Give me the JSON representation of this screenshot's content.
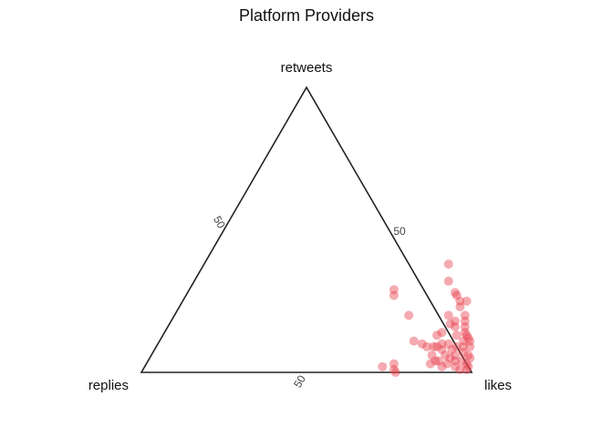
{
  "chart_data": {
    "type": "scatter",
    "subtype": "ternary",
    "title": "Platform Providers",
    "axes": {
      "top": "retweets",
      "left": "replies",
      "right": "likes"
    },
    "tick_labels": [
      "50",
      "50",
      "50"
    ],
    "ternary_range": [
      0,
      100
    ],
    "grid": false,
    "point_color": "#e8434f",
    "point_opacity": 0.45,
    "points": [
      {
        "likes": 62,
        "retweets": 29,
        "replies": 9
      },
      {
        "likes": 63,
        "retweets": 27,
        "replies": 10
      },
      {
        "likes": 71,
        "retweets": 20,
        "replies": 9
      },
      {
        "likes": 77,
        "retweets": 11,
        "replies": 12
      },
      {
        "likes": 80,
        "retweets": 10,
        "replies": 10
      },
      {
        "likes": 82,
        "retweets": 9,
        "replies": 9
      },
      {
        "likes": 84,
        "retweets": 9,
        "replies": 7
      },
      {
        "likes": 85,
        "retweets": 9,
        "replies": 6
      },
      {
        "likes": 87,
        "retweets": 8,
        "replies": 5
      },
      {
        "likes": 86,
        "retweets": 10,
        "replies": 4
      },
      {
        "likes": 83,
        "retweets": 13,
        "replies": 4
      },
      {
        "likes": 85,
        "retweets": 6,
        "replies": 9
      },
      {
        "likes": 88,
        "retweets": 4,
        "replies": 8
      },
      {
        "likes": 86,
        "retweets": 3,
        "replies": 11
      },
      {
        "likes": 74,
        "retweets": 38,
        "replies": -12
      },
      {
        "likes": 77,
        "retweets": 32,
        "replies": -9
      },
      {
        "likes": 81,
        "retweets": 28,
        "replies": -9
      },
      {
        "likes": 85,
        "retweets": 23,
        "replies": -8
      },
      {
        "likes": 82,
        "retweets": 27,
        "replies": -9
      },
      {
        "likes": 84,
        "retweets": 25,
        "replies": -9
      },
      {
        "likes": 86,
        "retweets": 25,
        "replies": -11
      },
      {
        "likes": 85,
        "retweets": 17,
        "replies": -2
      },
      {
        "likes": 86,
        "retweets": 18,
        "replies": -4
      },
      {
        "likes": 84,
        "retweets": 14,
        "replies": 2
      },
      {
        "likes": 87,
        "retweets": 16,
        "replies": -3
      },
      {
        "likes": 83,
        "retweets": 20,
        "replies": -3
      },
      {
        "likes": 88,
        "retweets": 20,
        "replies": -8
      },
      {
        "likes": 89,
        "retweets": 18,
        "replies": -7
      },
      {
        "likes": 90,
        "retweets": 16,
        "replies": -6
      },
      {
        "likes": 91,
        "retweets": 14,
        "replies": -5
      },
      {
        "likes": 92,
        "retweets": 13,
        "replies": -5
      },
      {
        "likes": 93,
        "retweets": 12,
        "replies": -5
      },
      {
        "likes": 94,
        "retweets": 11,
        "replies": -5
      },
      {
        "likes": 92,
        "retweets": 11,
        "replies": -3
      },
      {
        "likes": 91,
        "retweets": 9,
        "replies": 0
      },
      {
        "likes": 93,
        "retweets": 9,
        "replies": -2
      },
      {
        "likes": 95,
        "retweets": 9,
        "replies": -4
      },
      {
        "likes": 94,
        "retweets": 7,
        "replies": -1
      },
      {
        "likes": 92,
        "retweets": 6,
        "replies": 2
      },
      {
        "likes": 91,
        "retweets": 5,
        "replies": 4
      },
      {
        "likes": 93,
        "retweets": 4,
        "replies": 3
      },
      {
        "likes": 96,
        "retweets": 6,
        "replies": -2
      },
      {
        "likes": 95,
        "retweets": 4,
        "replies": 1
      },
      {
        "likes": 97,
        "retweets": 5,
        "replies": -2
      },
      {
        "likes": 97,
        "retweets": 3,
        "replies": 0
      },
      {
        "likes": 98,
        "retweets": 1,
        "replies": 1
      },
      {
        "likes": 89,
        "retweets": 13,
        "replies": -2
      },
      {
        "likes": 88,
        "retweets": 10,
        "replies": 2
      },
      {
        "likes": 90,
        "retweets": 8,
        "replies": 2
      },
      {
        "likes": 89,
        "retweets": 6,
        "replies": 5
      },
      {
        "likes": 91,
        "retweets": 3,
        "replies": 6
      },
      {
        "likes": 90,
        "retweets": 2,
        "replies": 8
      },
      {
        "likes": 94,
        "retweets": 2,
        "replies": 4
      },
      {
        "likes": 96,
        "retweets": 1,
        "replies": 3
      },
      {
        "likes": 98,
        "retweets": 2,
        "replies": 0
      },
      {
        "likes": 87,
        "retweets": 4,
        "replies": 9
      },
      {
        "likes": 77,
        "retweets": 0,
        "replies": 23
      },
      {
        "likes": 76,
        "retweets": 1,
        "replies": 23
      },
      {
        "likes": 75,
        "retweets": 3,
        "replies": 22
      },
      {
        "likes": 72,
        "retweets": 2,
        "replies": 26
      }
    ]
  }
}
